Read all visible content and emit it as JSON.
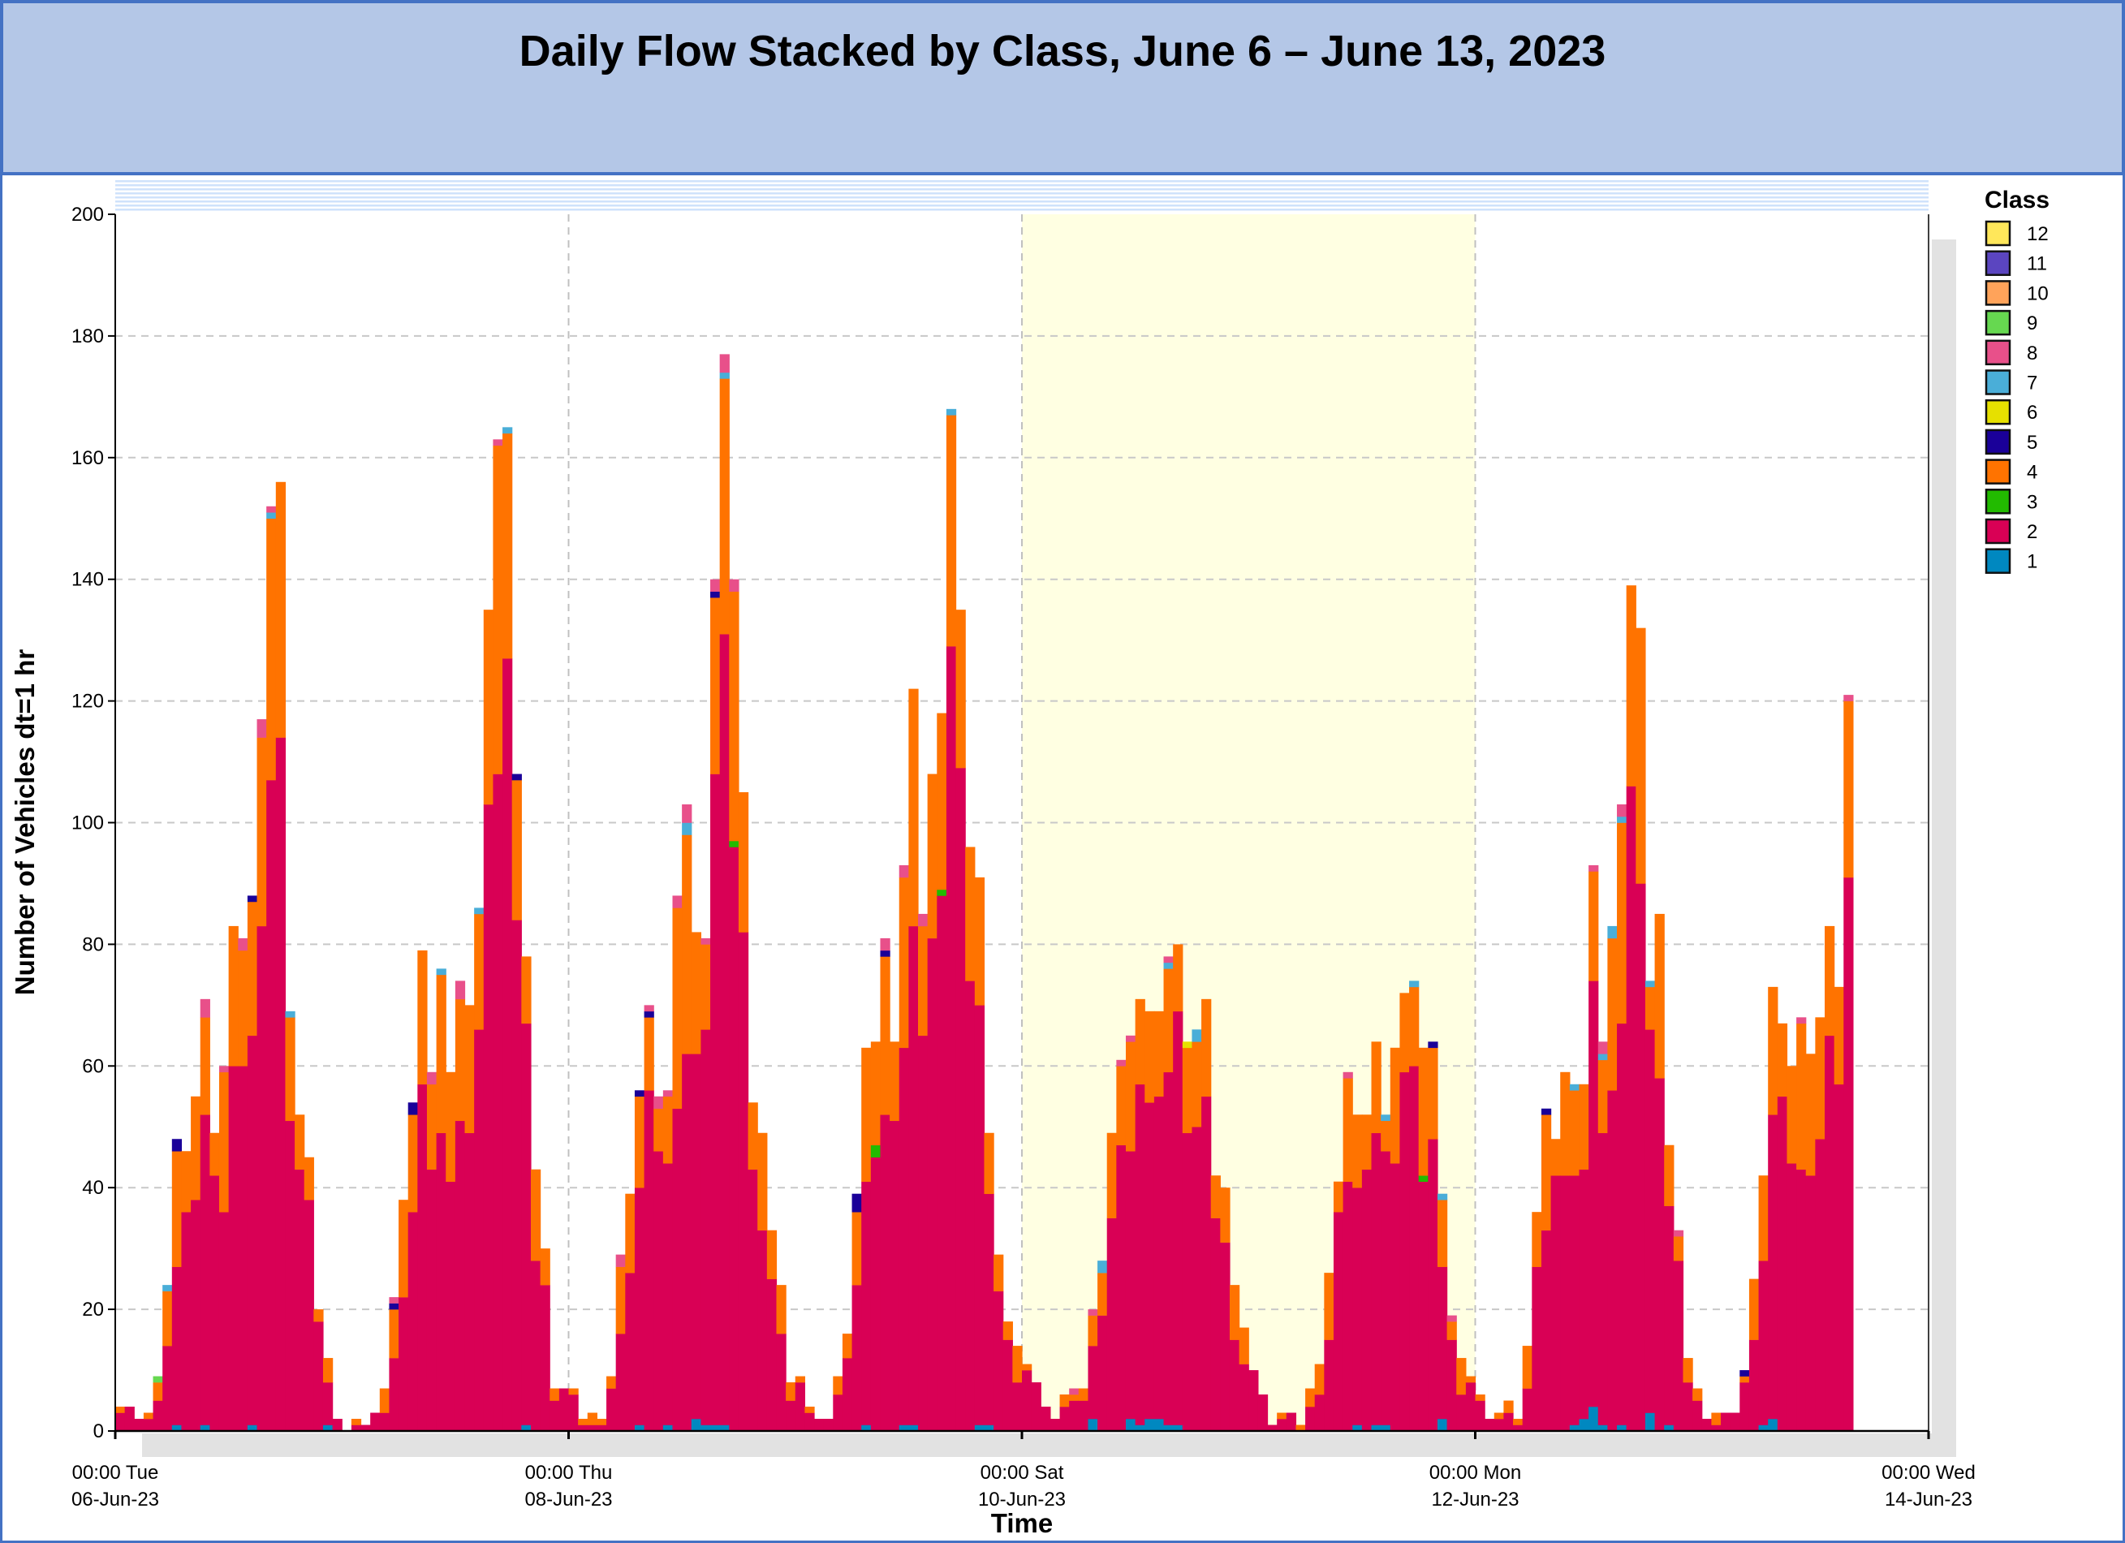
{
  "title": "Daily Flow Stacked by Class, June 6 – June 13, 2023",
  "chart_data": {
    "type": "bar",
    "stacked": true,
    "title": "Daily Flow Stacked by Class, June 6 – June 13, 2023",
    "xlabel": "Time",
    "ylabel": "Number of Vehicles dt=1 hr",
    "ylim": [
      0,
      200
    ],
    "yticks": [
      0,
      20,
      40,
      60,
      80,
      100,
      120,
      140,
      160,
      180,
      200
    ],
    "x_unit": "hour since 00:00 Tue 06-Jun-23",
    "xlim": [
      0,
      192
    ],
    "xticks": [
      {
        "hour": 0,
        "line1": "00:00 Tue",
        "line2": "06-Jun-23"
      },
      {
        "hour": 48,
        "line1": "00:00 Thu",
        "line2": "08-Jun-23"
      },
      {
        "hour": 96,
        "line1": "00:00 Sat",
        "line2": "10-Jun-23"
      },
      {
        "hour": 144,
        "line1": "00:00 Mon",
        "line2": "12-Jun-23"
      },
      {
        "hour": 192,
        "line1": "00:00 Wed",
        "line2": "14-Jun-23"
      }
    ],
    "weekend_shading_hours": [
      96,
      144
    ],
    "grid": true,
    "legend": {
      "title": "Class",
      "placement": "right",
      "entries": [
        {
          "name": "12",
          "color": "#ffe75a"
        },
        {
          "name": "11",
          "color": "#5b45c0"
        },
        {
          "name": "10",
          "color": "#ffa35a"
        },
        {
          "name": "9",
          "color": "#66d850"
        },
        {
          "name": "8",
          "color": "#e8508a"
        },
        {
          "name": "7",
          "color": "#4aaed8"
        },
        {
          "name": "6",
          "color": "#e6e000"
        },
        {
          "name": "5",
          "color": "#1a0099"
        },
        {
          "name": "4",
          "color": "#ff7300"
        },
        {
          "name": "3",
          "color": "#22bb00"
        },
        {
          "name": "2",
          "color": "#d90055"
        },
        {
          "name": "1",
          "color": "#0088c0"
        }
      ]
    },
    "series": [
      {
        "name": "1",
        "sparse": [
          [
            6,
            1
          ],
          [
            9,
            1
          ],
          [
            14,
            1
          ],
          [
            22,
            1
          ],
          [
            43,
            1
          ],
          [
            55,
            1
          ],
          [
            58,
            1
          ],
          [
            61,
            2
          ],
          [
            62,
            1
          ],
          [
            63,
            1
          ],
          [
            64,
            1
          ],
          [
            79,
            1
          ],
          [
            83,
            1
          ],
          [
            84,
            1
          ],
          [
            91,
            1
          ],
          [
            92,
            1
          ],
          [
            103,
            2
          ],
          [
            107,
            2
          ],
          [
            108,
            1
          ],
          [
            109,
            2
          ],
          [
            110,
            2
          ],
          [
            111,
            1
          ],
          [
            112,
            1
          ],
          [
            131,
            1
          ],
          [
            133,
            1
          ],
          [
            134,
            1
          ],
          [
            140,
            2
          ],
          [
            154,
            1
          ],
          [
            155,
            2
          ],
          [
            156,
            4
          ],
          [
            157,
            1
          ],
          [
            159,
            1
          ],
          [
            162,
            3
          ],
          [
            164,
            1
          ],
          [
            174,
            1
          ],
          [
            175,
            2
          ]
        ]
      },
      {
        "name": "2",
        "values": [
          3,
          4,
          2,
          2,
          5,
          14,
          26,
          36,
          38,
          51,
          42,
          36,
          60,
          60,
          64,
          83,
          107,
          114,
          51,
          43,
          38,
          18,
          7,
          2,
          0,
          1,
          1,
          3,
          3,
          12,
          22,
          36,
          57,
          43,
          49,
          41,
          51,
          49,
          66,
          103,
          108,
          127,
          84,
          66,
          28,
          24,
          5,
          7,
          6,
          1,
          1,
          1,
          7,
          16,
          26,
          39,
          56,
          46,
          43,
          53,
          62,
          60,
          65,
          107,
          130,
          96,
          82,
          43,
          33,
          25,
          16,
          5,
          8,
          3,
          2,
          2,
          6,
          12,
          24,
          40,
          45,
          52,
          51,
          62,
          82,
          65,
          81,
          88,
          129,
          109,
          74,
          69,
          38,
          23,
          15,
          8,
          10,
          8,
          4,
          2,
          4,
          5,
          5,
          12,
          19,
          35,
          47,
          44,
          56,
          52,
          53,
          58,
          68,
          49,
          50,
          55,
          35,
          31,
          15,
          11,
          10,
          6,
          1,
          2,
          3,
          0,
          4,
          6,
          15,
          36,
          41,
          39,
          43,
          48,
          45,
          44,
          59,
          60,
          41,
          48,
          25,
          15,
          6,
          8,
          5,
          2,
          2,
          3,
          1,
          7,
          27,
          33,
          42,
          42,
          41,
          41,
          70,
          48,
          56,
          66,
          106,
          90,
          63,
          58,
          36,
          28,
          8,
          5,
          2,
          1,
          3,
          3,
          8,
          15,
          27,
          50,
          55,
          44,
          43,
          42,
          48,
          65,
          57,
          91,
          0,
          0,
          0,
          0,
          0,
          0,
          0,
          0
        ]
      },
      {
        "name": "3",
        "sparse": [
          [
            65,
            1
          ],
          [
            80,
            2
          ],
          [
            87,
            1
          ],
          [
            138,
            1
          ]
        ]
      },
      {
        "name": "4",
        "values": [
          1,
          0,
          0,
          1,
          3,
          9,
          19,
          10,
          17,
          16,
          7,
          23,
          23,
          19,
          22,
          31,
          43,
          42,
          17,
          9,
          7,
          2,
          4,
          0,
          0,
          1,
          0,
          0,
          4,
          8,
          16,
          16,
          22,
          14,
          26,
          18,
          20,
          21,
          19,
          32,
          54,
          37,
          23,
          11,
          15,
          6,
          2,
          0,
          1,
          1,
          2,
          1,
          2,
          11,
          13,
          15,
          12,
          7,
          11,
          33,
          36,
          20,
          14,
          29,
          42,
          41,
          23,
          11,
          16,
          8,
          8,
          3,
          1,
          1,
          0,
          0,
          3,
          4,
          12,
          22,
          17,
          26,
          13,
          28,
          39,
          18,
          27,
          29,
          38,
          26,
          22,
          21,
          10,
          6,
          3,
          6,
          1,
          0,
          0,
          0,
          2,
          1,
          2,
          5,
          7,
          14,
          13,
          18,
          14,
          15,
          14,
          17,
          11,
          14,
          14,
          16,
          7,
          9,
          9,
          6,
          0,
          0,
          0,
          1,
          0,
          1,
          3,
          5,
          11,
          5,
          17,
          12,
          9,
          15,
          5,
          19,
          13,
          13,
          21,
          15,
          11,
          3,
          6,
          1,
          1,
          0,
          1,
          2,
          1,
          7,
          9,
          19,
          6,
          17,
          14,
          14,
          18,
          12,
          25,
          33,
          33,
          42,
          7,
          27,
          10,
          4,
          4,
          2,
          0,
          2,
          0,
          0,
          1,
          10,
          14,
          21,
          12,
          16,
          24,
          20,
          20,
          18,
          16,
          29,
          0,
          0,
          0,
          0,
          0,
          0,
          0,
          0
        ]
      },
      {
        "name": "5",
        "sparse": [
          [
            6,
            2
          ],
          [
            14,
            1
          ],
          [
            29,
            1
          ],
          [
            31,
            2
          ],
          [
            42,
            1
          ],
          [
            55,
            1
          ],
          [
            56,
            1
          ],
          [
            63,
            1
          ],
          [
            78,
            3
          ],
          [
            81,
            1
          ],
          [
            139,
            1
          ],
          [
            151,
            1
          ],
          [
            172,
            1
          ]
        ]
      },
      {
        "name": "6",
        "sparse": [
          [
            113,
            1
          ]
        ]
      },
      {
        "name": "7",
        "sparse": [
          [
            5,
            1
          ],
          [
            16,
            1
          ],
          [
            18,
            1
          ],
          [
            34,
            1
          ],
          [
            38,
            1
          ],
          [
            41,
            1
          ],
          [
            60,
            2
          ],
          [
            64,
            1
          ],
          [
            88,
            1
          ],
          [
            104,
            2
          ],
          [
            111,
            1
          ],
          [
            114,
            2
          ],
          [
            134,
            1
          ],
          [
            137,
            1
          ],
          [
            140,
            1
          ],
          [
            154,
            1
          ],
          [
            157,
            1
          ],
          [
            158,
            2
          ],
          [
            159,
            1
          ],
          [
            162,
            1
          ]
        ]
      },
      {
        "name": "8",
        "sparse": [
          [
            9,
            3
          ],
          [
            11,
            1
          ],
          [
            13,
            2
          ],
          [
            15,
            3
          ],
          [
            16,
            1
          ],
          [
            29,
            1
          ],
          [
            33,
            2
          ],
          [
            36,
            3
          ],
          [
            40,
            1
          ],
          [
            53,
            2
          ],
          [
            56,
            1
          ],
          [
            57,
            2
          ],
          [
            58,
            1
          ],
          [
            59,
            2
          ],
          [
            60,
            3
          ],
          [
            62,
            1
          ],
          [
            63,
            2
          ],
          [
            64,
            3
          ],
          [
            65,
            2
          ],
          [
            81,
            2
          ],
          [
            83,
            2
          ],
          [
            85,
            2
          ],
          [
            101,
            1
          ],
          [
            103,
            1
          ],
          [
            106,
            1
          ],
          [
            107,
            1
          ],
          [
            111,
            1
          ],
          [
            130,
            1
          ],
          [
            141,
            1
          ],
          [
            156,
            1
          ],
          [
            157,
            2
          ],
          [
            159,
            2
          ],
          [
            165,
            1
          ],
          [
            178,
            1
          ],
          [
            183,
            1
          ]
        ]
      },
      {
        "name": "9",
        "sparse": [
          [
            4,
            1
          ]
        ]
      },
      {
        "name": "10",
        "sparse": []
      },
      {
        "name": "11",
        "sparse": []
      },
      {
        "name": "12",
        "sparse": []
      }
    ]
  }
}
